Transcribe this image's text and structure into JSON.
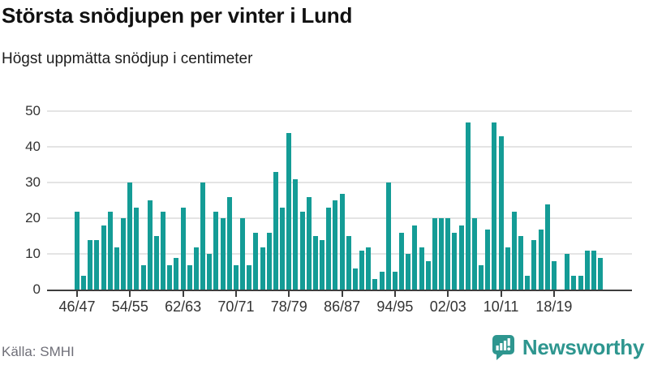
{
  "header": {
    "title": "Största snödjupen per vinter i Lund",
    "subtitle": "Högst uppmätta snödjup i centimeter"
  },
  "footer": {
    "source": "Källa: SMHI",
    "brand": "Newsworthy"
  },
  "colors": {
    "bar": "#149c96",
    "brand": "#2e968f",
    "axis": "#3d3d3d",
    "grid": "#e4e4e4",
    "label": "#333333",
    "muted": "#6f6f78"
  },
  "chart_data": {
    "type": "bar",
    "title": "Största snödjupen per vinter i Lund",
    "subtitle": "Högst uppmätta snödjup i centimeter",
    "unit": "cm",
    "xlabel": "",
    "ylabel": "",
    "ylim": [
      0,
      50
    ],
    "yticks": [
      0,
      10,
      20,
      30,
      40,
      50
    ],
    "grid": "horizontal",
    "legend": "none",
    "categories": [
      "46/47",
      "47/48",
      "48/49",
      "49/50",
      "50/51",
      "51/52",
      "52/53",
      "53/54",
      "54/55",
      "55/56",
      "56/57",
      "57/58",
      "58/59",
      "59/60",
      "60/61",
      "61/62",
      "62/63",
      "63/64",
      "64/65",
      "65/66",
      "66/67",
      "67/68",
      "68/69",
      "69/70",
      "70/71",
      "71/72",
      "72/73",
      "73/74",
      "74/75",
      "75/76",
      "76/77",
      "77/78",
      "78/79",
      "79/80",
      "80/81",
      "81/82",
      "82/83",
      "83/84",
      "84/85",
      "85/86",
      "86/87",
      "87/88",
      "88/89",
      "89/90",
      "90/91",
      "91/92",
      "92/93",
      "93/94",
      "94/95",
      "95/96",
      "96/97",
      "97/98",
      "98/99",
      "99/00",
      "00/01",
      "01/02",
      "02/03",
      "03/04",
      "04/05",
      "05/06",
      "06/07",
      "07/08",
      "08/09",
      "09/10",
      "10/11",
      "11/12",
      "12/13",
      "13/14",
      "14/15",
      "15/16",
      "16/17",
      "17/18",
      "18/19",
      "19/20",
      "20/21",
      "21/22",
      "22/23",
      "23/24",
      "24/25",
      "25/26"
    ],
    "values": [
      22,
      4,
      14,
      14,
      18,
      22,
      12,
      20,
      30,
      23,
      7,
      25,
      15,
      22,
      7,
      9,
      23,
      7,
      12,
      30,
      10,
      22,
      20,
      26,
      7,
      20,
      7,
      16,
      12,
      16,
      33,
      23,
      44,
      31,
      22,
      26,
      15,
      14,
      23,
      25,
      27,
      15,
      6,
      11,
      12,
      3,
      5,
      30,
      5,
      16,
      10,
      18,
      12,
      8,
      20,
      20,
      20,
      16,
      18,
      47,
      20,
      7,
      17,
      47,
      43,
      12,
      22,
      15,
      4,
      14,
      17,
      24,
      8,
      0,
      10,
      4,
      4,
      11,
      11,
      9
    ],
    "xticks": [
      "46/47",
      "54/55",
      "62/63",
      "70/71",
      "78/79",
      "86/87",
      "94/95",
      "02/03",
      "10/11",
      "18/19"
    ]
  }
}
